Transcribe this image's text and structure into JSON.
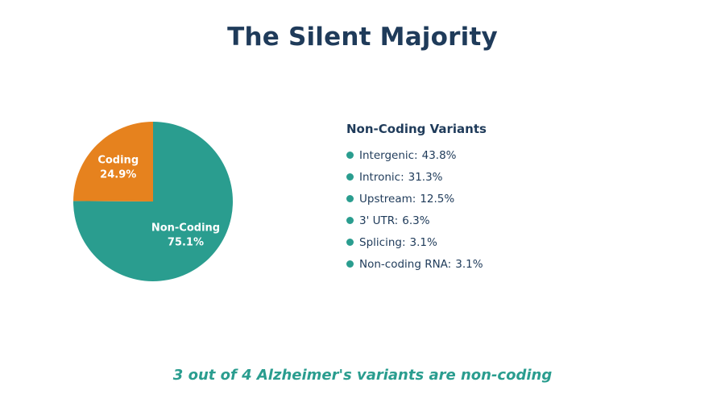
{
  "title": "The Silent Majority",
  "footer": "3 out of 4 Alzheimer's variants are non-coding",
  "colors": {
    "title": "#1f3b5a",
    "non_coding": "#2a9d8f",
    "coding": "#e6821e",
    "footer": "#2a9d8f"
  },
  "chart_data": [
    {
      "type": "pie",
      "title": "",
      "slices": [
        {
          "label": "Non-Coding",
          "value": 75.1,
          "display": "75.1%",
          "color": "#2a9d8f"
        },
        {
          "label": "Coding",
          "value": 24.9,
          "display": "24.9%",
          "color": "#e6821e"
        }
      ]
    },
    {
      "type": "table",
      "title": "Non-Coding Variants",
      "items": [
        {
          "label": "Intergenic:",
          "value": 43.8,
          "display": "43.8%"
        },
        {
          "label": "Intronic:",
          "value": 31.3,
          "display": "31.3%"
        },
        {
          "label": "Upstream:",
          "value": 12.5,
          "display": "12.5%"
        },
        {
          "label": "3' UTR:",
          "value": 6.3,
          "display": "6.3%"
        },
        {
          "label": "Splicing:",
          "value": 3.1,
          "display": "3.1%"
        },
        {
          "label": "Non-coding RNA:",
          "value": 3.1,
          "display": "3.1%"
        }
      ]
    }
  ]
}
